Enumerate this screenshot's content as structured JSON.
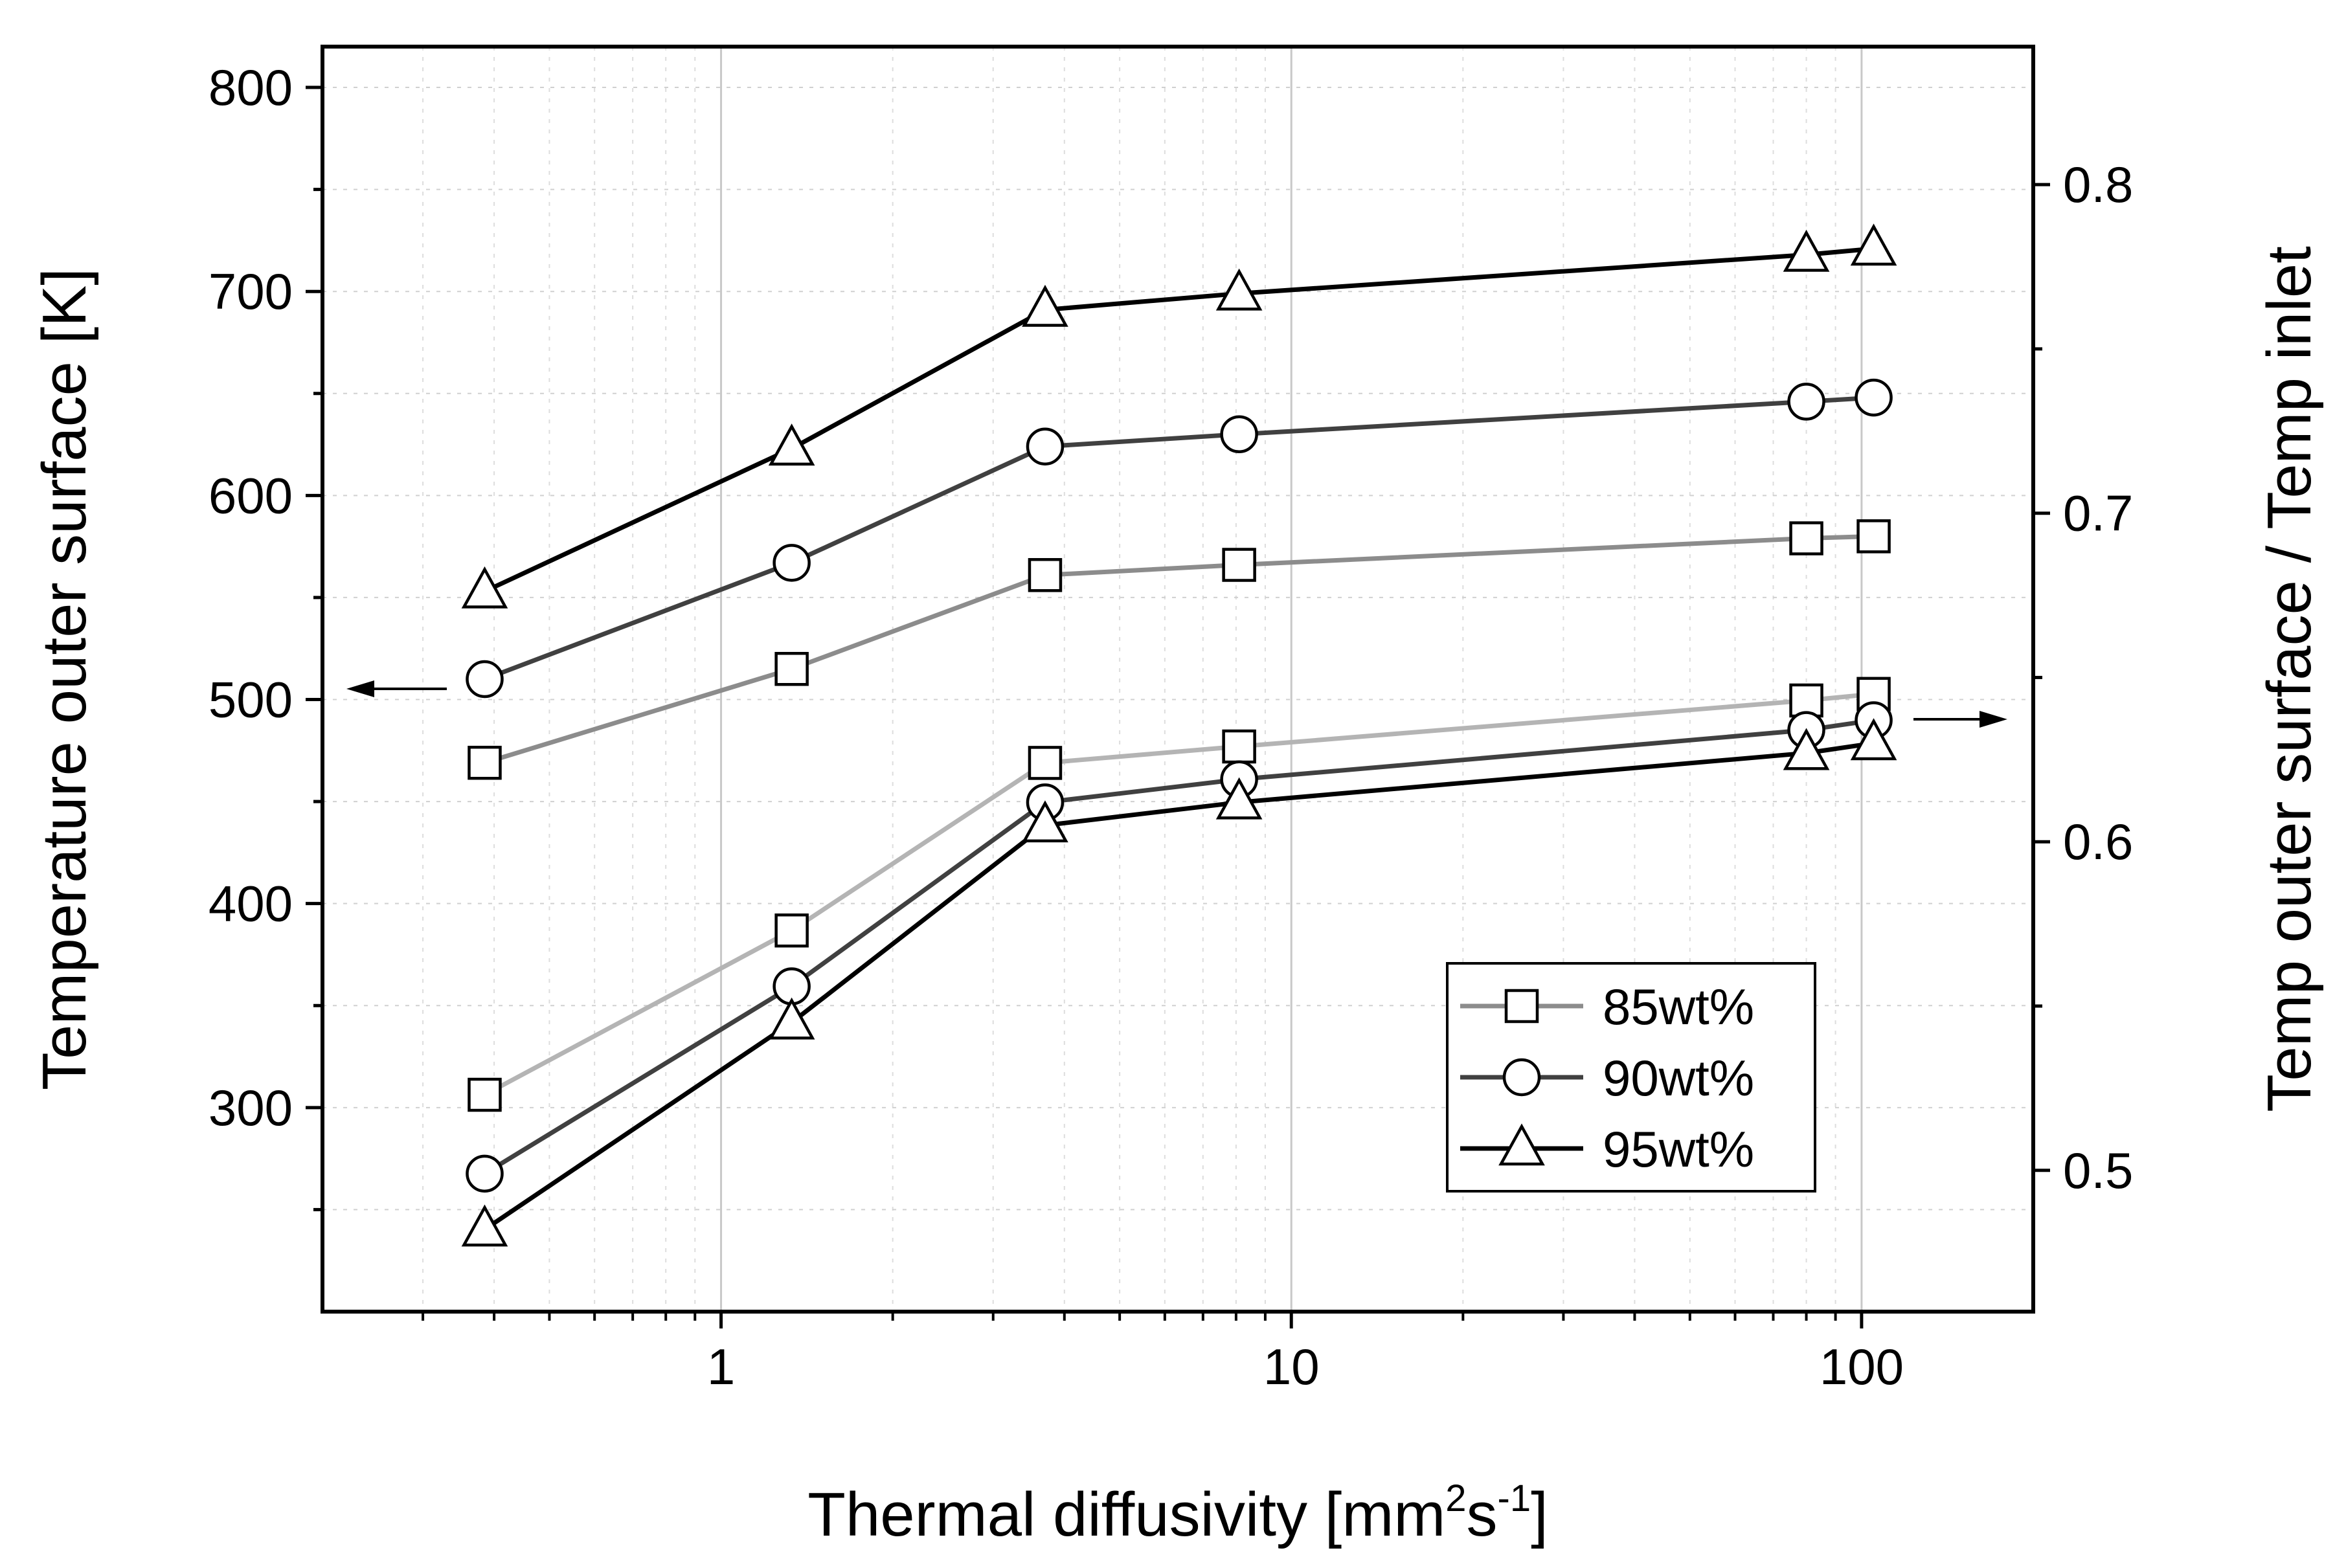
{
  "chart_data": {
    "type": "line",
    "xscale": "log",
    "x": [
      0.385,
      1.33,
      3.7,
      8.1,
      80,
      105
    ],
    "xlim": [
      0.2,
      200
    ],
    "ylim_left": [
      200,
      820
    ],
    "ylim_right": [
      0.457,
      0.842
    ],
    "xlabel": "Thermal diffusivity [mm²s⁻¹]",
    "xlabel_parts": {
      "main": "Thermal diffusivity [mm",
      "sup1": "2",
      "mid": "s",
      "sup2": "-1",
      "end": "]"
    },
    "ylabel_left": "Temperature outer surface [K]",
    "ylabel_right": "Temp outer surface / Temp inlet",
    "x_ticks": [
      {
        "value": 1,
        "label": "1"
      },
      {
        "value": 10,
        "label": "10"
      },
      {
        "value": 100,
        "label": "100"
      }
    ],
    "y_left_ticks": [
      {
        "value": 300,
        "label": "300"
      },
      {
        "value": 400,
        "label": "400"
      },
      {
        "value": 500,
        "label": "500"
      },
      {
        "value": 600,
        "label": "600"
      },
      {
        "value": 700,
        "label": "700"
      },
      {
        "value": 800,
        "label": "800"
      }
    ],
    "y_right_ticks": [
      {
        "value": 0.5,
        "label": "0.5"
      },
      {
        "value": 0.6,
        "label": "0.6"
      },
      {
        "value": 0.7,
        "label": "0.7"
      },
      {
        "value": 0.8,
        "label": "0.8"
      }
    ],
    "series": [
      {
        "name": "85wt% temperature",
        "axis": "left",
        "marker": "square",
        "color": "#8c8c8c",
        "values": [
          469,
          515,
          561,
          566,
          579,
          580
        ]
      },
      {
        "name": "90wt% temperature",
        "axis": "left",
        "marker": "circle",
        "color": "#404040",
        "values": [
          510,
          567,
          624,
          630,
          646,
          648
        ]
      },
      {
        "name": "95wt% temperature",
        "axis": "left",
        "marker": "triangle",
        "color": "#000000",
        "values": [
          553,
          623,
          691,
          699,
          718,
          721
        ]
      },
      {
        "name": "85wt% ratio",
        "axis": "right",
        "marker": "square",
        "color": "#b4b4b4",
        "values": [
          0.523,
          0.573,
          0.624,
          0.629,
          0.643,
          0.645
        ]
      },
      {
        "name": "90wt% ratio",
        "axis": "right",
        "marker": "circle",
        "color": "#404040",
        "values": [
          0.499,
          0.556,
          0.612,
          0.619,
          0.634,
          0.637
        ]
      },
      {
        "name": "95wt% ratio",
        "axis": "right",
        "marker": "triangle",
        "color": "#000000",
        "values": [
          0.482,
          0.545,
          0.605,
          0.612,
          0.627,
          0.63
        ]
      }
    ],
    "legend": [
      {
        "label": "85wt%",
        "marker": "square",
        "color": "#8c8c8c"
      },
      {
        "label": "90wt%",
        "marker": "circle",
        "color": "#404040"
      },
      {
        "label": "95wt%",
        "marker": "triangle",
        "color": "#000000"
      }
    ],
    "legend_position": "bottom-right",
    "annotations": [
      {
        "type": "arrow",
        "direction": "left",
        "meaning": "upper curves use left axis"
      },
      {
        "type": "arrow",
        "direction": "right",
        "meaning": "lower curves use right axis"
      }
    ],
    "grid": true
  }
}
